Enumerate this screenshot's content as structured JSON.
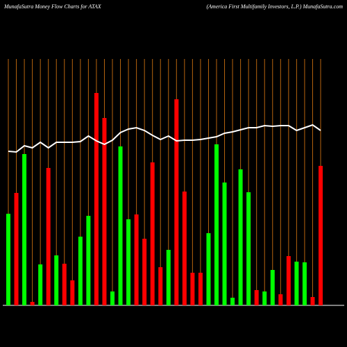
{
  "chart_data": {
    "type": "bar-line",
    "title": "MunafaSutra  Money Flow  Charts for ATAX",
    "subtitle": "(America  First Multifamily Investors,  L.P.) MunafaSutra.com",
    "categories": [
      null,
      null,
      null,
      null,
      null,
      null,
      null,
      null,
      null,
      null,
      null,
      null,
      null,
      null,
      null,
      null,
      null,
      null,
      null,
      null,
      null,
      null,
      null,
      null,
      null,
      null,
      null,
      null,
      null,
      null,
      null,
      null,
      null,
      null,
      null,
      null,
      null,
      null,
      null,
      null
    ],
    "bars": {
      "values": [
        132,
        162,
        218,
        5,
        59,
        198,
        72,
        60,
        36,
        99,
        129,
        306,
        270,
        20,
        229,
        124,
        131,
        96,
        206,
        55,
        80,
        297,
        164,
        47,
        47,
        104,
        232,
        177,
        11,
        196,
        163,
        22,
        20,
        51,
        16,
        71,
        63,
        62,
        12,
        201
      ],
      "colors": [
        "#00ff00",
        "#ff0000",
        "#00ff00",
        "#ff0000",
        "#00ff00",
        "#ff0000",
        "#00ff00",
        "#ff0000",
        "#ff0000",
        "#00ff00",
        "#00ff00",
        "#ff0000",
        "#ff0000",
        "#00ff00",
        "#00ff00",
        "#00ff00",
        "#ff0000",
        "#ff0000",
        "#ff0000",
        "#ff0000",
        "#00ff00",
        "#ff0000",
        "#ff0000",
        "#ff0000",
        "#ff0000",
        "#00ff00",
        "#00ff00",
        "#00ff00",
        "#00ff00",
        "#00ff00",
        "#00ff00",
        "#ff0000",
        "#00ff00",
        "#00ff00",
        "#ff0000",
        "#ff0000",
        "#00ff00",
        "#00ff00",
        "#ff0000",
        "#ff0000"
      ]
    },
    "line": {
      "color": "#ffffff",
      "values": [
        222,
        221,
        230,
        227,
        235,
        227,
        235,
        235,
        235,
        236,
        244,
        237,
        232,
        238,
        249,
        254,
        256,
        252,
        245,
        239,
        244,
        237,
        238,
        238,
        239,
        241,
        243,
        248,
        250,
        253,
        256,
        256,
        259,
        258,
        259,
        259,
        252,
        256,
        260,
        252
      ]
    },
    "ylim": [
      0,
      355
    ],
    "grid": true,
    "grid_color": "#b8650f"
  }
}
